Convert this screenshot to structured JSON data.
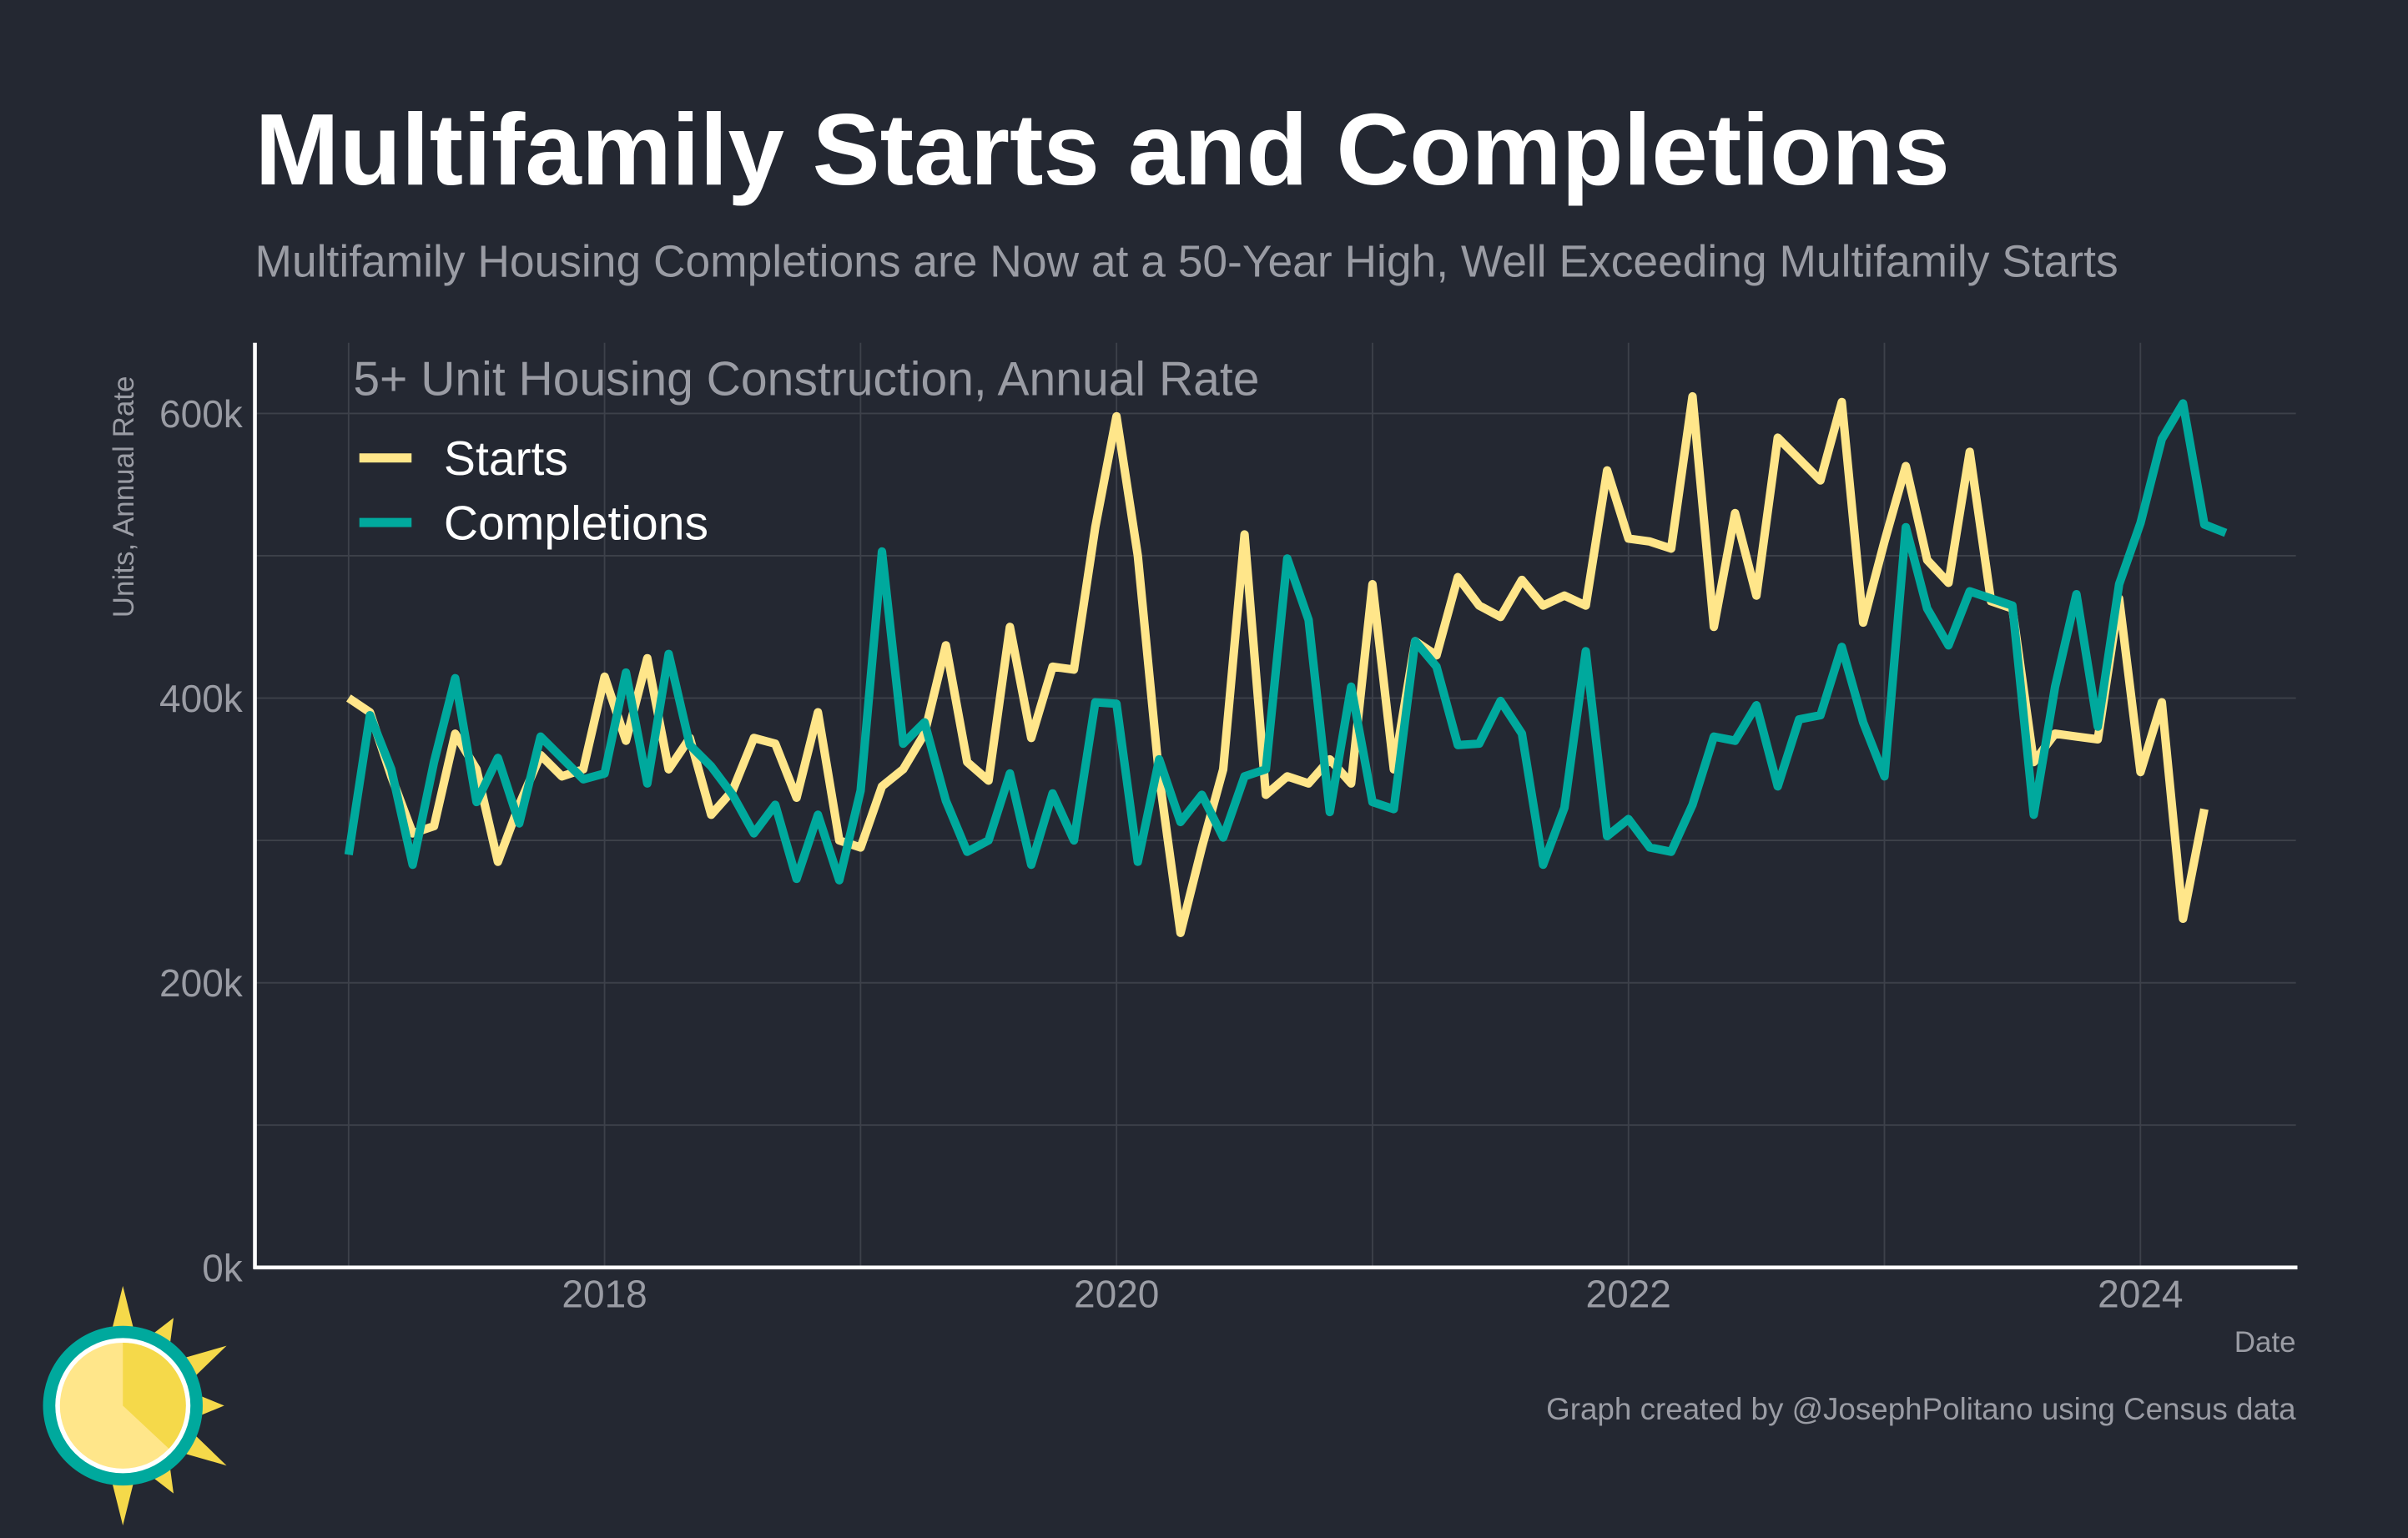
{
  "header": {
    "title": "Multifamily Starts and Completions",
    "subtitle": "Multifamily Housing Completions are Now at a 50-Year High, Well Exceeding Multifamily Starts"
  },
  "footer": {
    "credit": "Graph created by @JosephPolitano using Census data"
  },
  "colors": {
    "background": "#242832",
    "starts": "#ffe68a",
    "completions": "#00a99d"
  },
  "chart_data": {
    "type": "line",
    "title": "5+ Unit Housing Construction, Annual Rate",
    "xlabel": "Date",
    "ylabel": "Units, Annual Rate",
    "ylim": [
      0,
      600000
    ],
    "xlim": [
      "2017-01",
      "2024-06"
    ],
    "grid": true,
    "legend_position": "top-left",
    "y_ticks": [
      {
        "value": 0,
        "label": "0k"
      },
      {
        "value": 200000,
        "label": "200k"
      },
      {
        "value": 400000,
        "label": "400k"
      },
      {
        "value": 600000,
        "label": "600k"
      }
    ],
    "x_ticks": [
      {
        "year": 2018,
        "label": "2018"
      },
      {
        "year": 2020,
        "label": "2020"
      },
      {
        "year": 2022,
        "label": "2022"
      },
      {
        "year": 2024,
        "label": "2024"
      }
    ],
    "start": "2017-01",
    "frequency": "monthly",
    "units": "thousands",
    "series": [
      {
        "name": "Starts",
        "color": "#ffe68a",
        "values": [
          400,
          390,
          345,
          305,
          310,
          375,
          350,
          285,
          325,
          360,
          345,
          350,
          415,
          370,
          428,
          350,
          372,
          318,
          335,
          372,
          368,
          330,
          390,
          300,
          295,
          338,
          350,
          375,
          437,
          355,
          342,
          450,
          372,
          422,
          420,
          520,
          598,
          500,
          345,
          235,
          295,
          350,
          515,
          332,
          345,
          340,
          357,
          340,
          480,
          350,
          440,
          430,
          485,
          465,
          457,
          483,
          465,
          472,
          465,
          560,
          512,
          510,
          505,
          612,
          450,
          530,
          472,
          583,
          568,
          553,
          608,
          453,
          510,
          563,
          497,
          481,
          573,
          468,
          463,
          355,
          375,
          373,
          371,
          470,
          348,
          397,
          245,
          322
        ]
      },
      {
        "name": "Completions",
        "color": "#00a99d",
        "values": [
          290,
          388,
          350,
          283,
          355,
          414,
          327,
          358,
          312,
          373,
          358,
          343,
          347,
          418,
          340,
          431,
          367,
          352,
          332,
          305,
          325,
          273,
          318,
          272,
          335,
          503,
          368,
          383,
          328,
          292,
          300,
          347,
          283,
          333,
          300,
          397,
          396,
          285,
          357,
          313,
          332,
          302,
          345,
          350,
          498,
          455,
          320,
          408,
          327,
          322,
          440,
          422,
          367,
          368,
          398,
          375,
          283,
          323,
          433,
          303,
          315,
          295,
          292,
          325,
          373,
          370,
          395,
          338,
          385,
          388,
          436,
          383,
          345,
          520,
          463,
          437,
          475,
          470,
          465,
          318,
          408,
          473,
          380,
          480,
          523,
          582,
          607,
          522,
          516
        ]
      }
    ]
  }
}
